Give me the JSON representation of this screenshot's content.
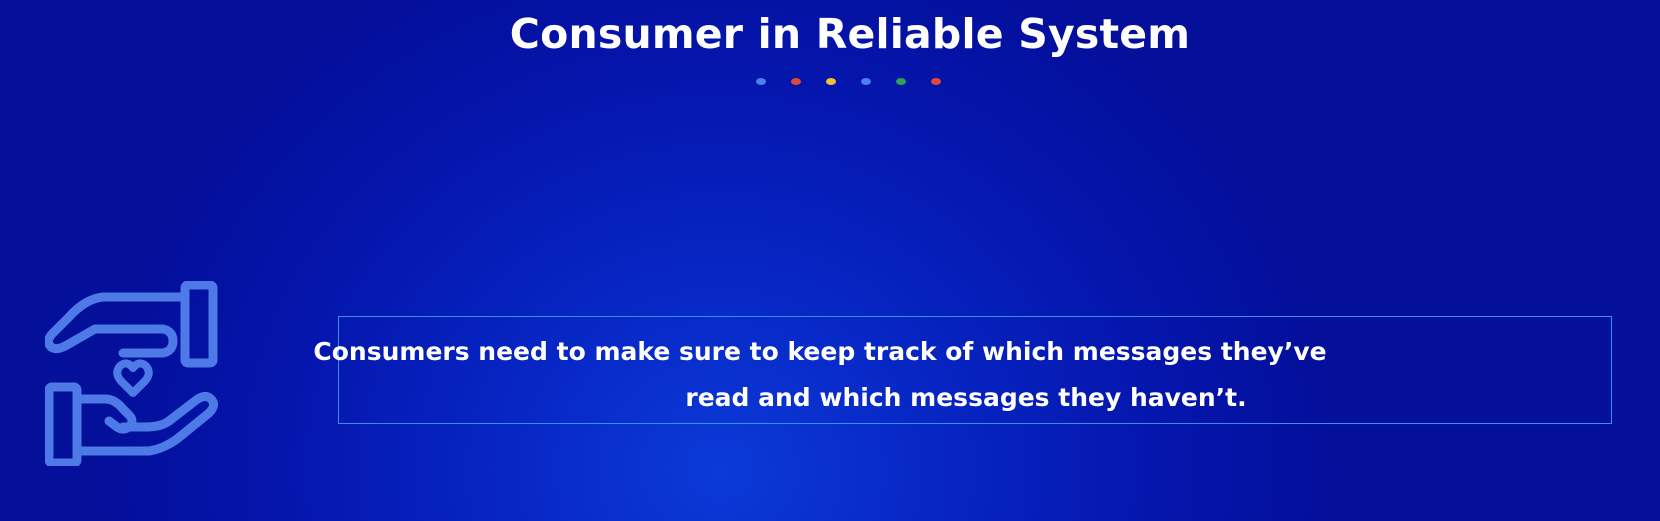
{
  "slide": {
    "title": "Consumer in Reliable System",
    "decor_dot_colors": [
      "#4c7ff0",
      "#dc4a3a",
      "#f3c132",
      "#4c7ff0",
      "#2fa05a",
      "#dc4a3a"
    ],
    "icon": "hands-holding-heart-icon",
    "message": {
      "line1": "Consumers need to make sure to keep track of which messages they’ve",
      "line2": "read and which messages they haven’t."
    },
    "colors": {
      "background": "#0516ad",
      "icon_stroke": "#4d7ae6",
      "box_border": "#3b8cf0",
      "text": "#ffffff"
    }
  }
}
